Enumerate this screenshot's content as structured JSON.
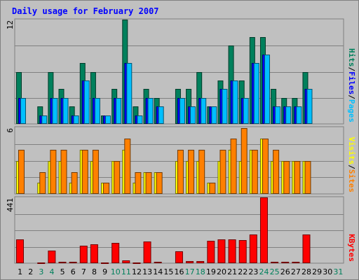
{
  "chart_data": {
    "type": "bar",
    "title": "Daily usage for February 2007",
    "categories": [
      "1",
      "2",
      "3",
      "4",
      "5",
      "6",
      "7",
      "8",
      "9",
      "10",
      "11",
      "12",
      "13",
      "14",
      "15",
      "16",
      "17",
      "18",
      "19",
      "20",
      "21",
      "22",
      "23",
      "24",
      "25",
      "26",
      "27",
      "28",
      "29",
      "30",
      "31"
    ],
    "weekend_days": [
      "3",
      "4",
      "10",
      "11",
      "17",
      "18",
      "24",
      "25",
      "31"
    ],
    "panels": [
      {
        "id": "hits-files-pages",
        "max_label": "12",
        "ylim": [
          0,
          12.1
        ],
        "grid_lines": [
          3,
          6,
          9
        ],
        "legend": [
          "Pages",
          "Files",
          "Hits"
        ],
        "series": [
          {
            "name": "Hits",
            "color": "#00805c",
            "values": [
              6,
              0,
              2,
              6,
              4,
              2,
              7,
              6,
              1,
              4,
              12,
              2,
              4,
              3,
              0,
              4,
              4,
              6,
              2,
              5,
              9,
              5,
              10,
              10,
              4,
              3,
              3,
              6,
              0,
              0,
              0
            ]
          },
          {
            "name": "Files",
            "color": "#0000ff",
            "values": [
              3,
              0,
              1,
              3,
              3,
              1,
              5,
              3,
              1,
              3,
              7,
              1,
              3,
              2,
              0,
              3,
              2,
              3,
              2,
              4,
              5,
              3,
              7,
              8,
              2,
              2,
              2,
              4,
              0,
              0,
              0
            ]
          },
          {
            "name": "Pages",
            "color": "#00bfff",
            "values": [
              3,
              0,
              1,
              3,
              3,
              1,
              5,
              3,
              1,
              3,
              7,
              1,
              3,
              2,
              0,
              3,
              2,
              3,
              2,
              4,
              5,
              3,
              7,
              8,
              2,
              2,
              2,
              4,
              0,
              0,
              0
            ]
          }
        ]
      },
      {
        "id": "visits-sites",
        "max_label": "6",
        "ylim": [
          0,
          6.1
        ],
        "grid_lines": [
          1.5,
          3,
          4.5
        ],
        "legend": [
          "Sites",
          "Visits"
        ],
        "series": [
          {
            "name": "Visits",
            "color": "#ffff00",
            "values": [
              3,
              0,
              1,
              3,
              3,
              1,
              4,
              3,
              1,
              3,
              4,
              1,
              2,
              2,
              0,
              3,
              3,
              3,
              1,
              3,
              4,
              3,
              4,
              5,
              3,
              3,
              3,
              3,
              0,
              0,
              0
            ]
          },
          {
            "name": "Sites",
            "color": "#ff8000",
            "values": [
              4,
              0,
              2,
              4,
              4,
              2,
              4,
              4,
              1,
              3,
              5,
              2,
              2,
              2,
              0,
              4,
              4,
              4,
              1,
              4,
              5,
              6,
              4,
              5,
              4,
              3,
              3,
              3,
              0,
              0,
              0
            ]
          }
        ]
      },
      {
        "id": "kbytes",
        "max_label": "441",
        "ylim": [
          0,
          445
        ],
        "grid_lines": [
          110,
          220,
          330
        ],
        "legend": [
          "KBytes"
        ],
        "series": [
          {
            "name": "KBytes",
            "color": "#ff0000",
            "values": [
              160,
              0,
              6,
              85,
              8,
              10,
              118,
              125,
              6,
              135,
              20,
              6,
              145,
              8,
              0,
              80,
              12,
              12,
              150,
              158,
              158,
              155,
              192,
              441,
              10,
              8,
              10,
              190,
              0,
              0,
              0
            ]
          }
        ]
      }
    ],
    "colors": {
      "background": "#c0c0c0",
      "grid": "#808080",
      "title": "#0000ff",
      "axis_text": "#000000",
      "weekend_text": "#00805c"
    }
  }
}
